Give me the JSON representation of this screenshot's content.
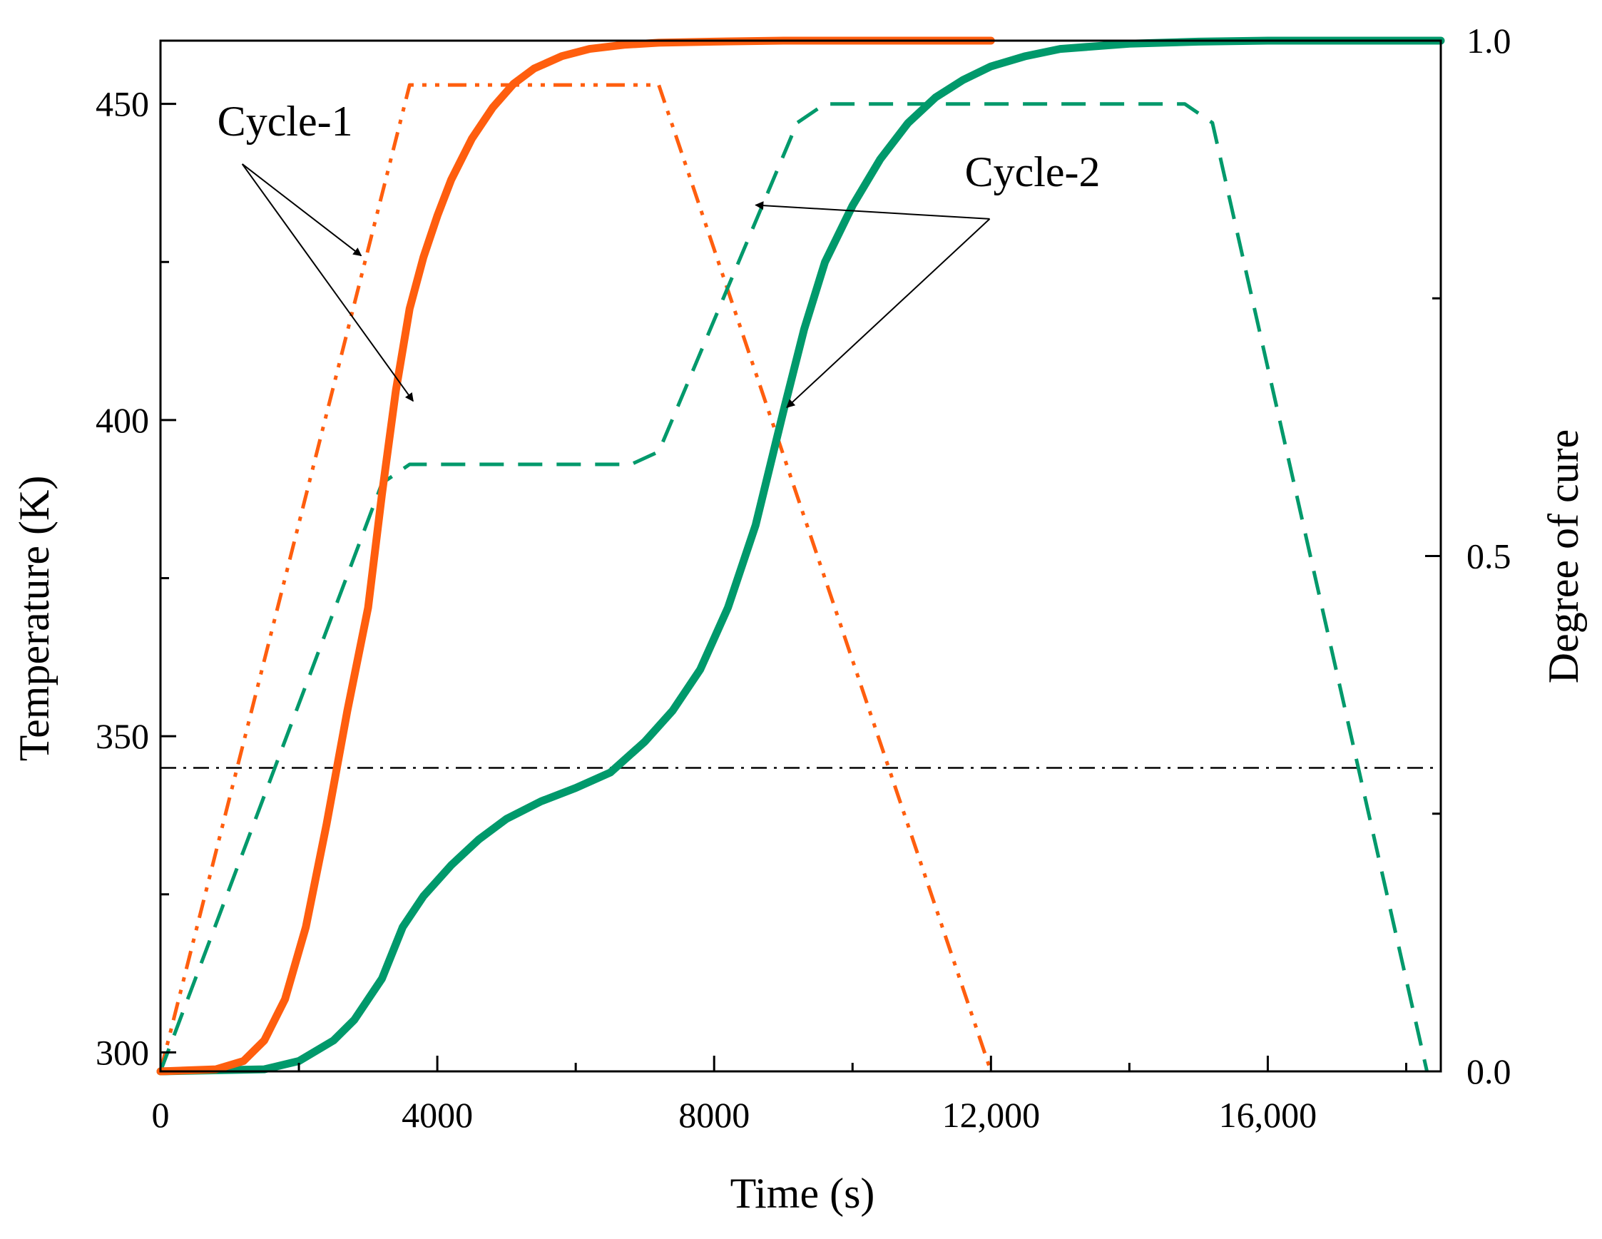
{
  "chart_data": {
    "type": "line",
    "xlabel": "Time (s)",
    "ylabel": "Temperature (K)",
    "y2label": "Degree of cure",
    "xlim": [
      0,
      18500
    ],
    "ylim": [
      297,
      460
    ],
    "y2lim": [
      0,
      1
    ],
    "x_ticks": [
      0,
      4000,
      8000,
      12000,
      16000
    ],
    "x_tick_labels": [
      "0",
      "4000",
      "8000",
      "12,000",
      "16,000"
    ],
    "x_minor_ticks": [
      2000,
      6000,
      10000,
      14000,
      18000
    ],
    "y_ticks": [
      300,
      350,
      400,
      450
    ],
    "y_tick_labels": [
      "300",
      "350",
      "400",
      "450"
    ],
    "y_minor_ticks": [
      325,
      375,
      425
    ],
    "y2_ticks": [
      0,
      0.5,
      1
    ],
    "y2_tick_labels": [
      "0.0",
      "0.5",
      "1.0"
    ],
    "y2_minor_ticks": [
      0.25,
      0.75
    ],
    "grid": false,
    "colors": {
      "cycle1": "#ff5e0e",
      "cycle2": "#00996b",
      "reference": "#000000"
    },
    "series": [
      {
        "axis": "left",
        "style": "dash-dot-dot",
        "color": "#ff5e0e",
        "x": [
          0,
          3600,
          7200,
          12000
        ],
        "y": [
          297,
          453,
          453,
          297
        ]
      },
      {
        "axis": "left",
        "style": "dashed",
        "color": "#00996b",
        "x": [
          0,
          3200,
          3600,
          6800,
          7200,
          9200,
          9600,
          14800,
          15200,
          18300
        ],
        "y": [
          297,
          390,
          393,
          393,
          395,
          447,
          450,
          450,
          447,
          297
        ]
      },
      {
        "axis": "left",
        "style": "dash-dot",
        "color": "#000000",
        "x": [
          0,
          18500
        ],
        "y": [
          345,
          345
        ]
      },
      {
        "axis": "right",
        "style": "solid",
        "color": "#ff5e0e",
        "x": [
          0,
          800,
          1200,
          1500,
          1800,
          2100,
          2400,
          2700,
          3000,
          3200,
          3400,
          3600,
          3800,
          4000,
          4200,
          4500,
          4800,
          5100,
          5400,
          5800,
          6200,
          6700,
          7200,
          8000,
          9000,
          10000,
          11000,
          12000
        ],
        "y": [
          0,
          0.002,
          0.01,
          0.03,
          0.07,
          0.14,
          0.24,
          0.35,
          0.45,
          0.56,
          0.66,
          0.74,
          0.79,
          0.83,
          0.865,
          0.905,
          0.935,
          0.958,
          0.973,
          0.985,
          0.992,
          0.996,
          0.998,
          0.999,
          1,
          1,
          1,
          1
        ]
      },
      {
        "axis": "right",
        "style": "solid",
        "color": "#00996b",
        "x": [
          0,
          1500,
          2000,
          2500,
          2800,
          3200,
          3500,
          3800,
          4200,
          4600,
          5000,
          5500,
          6000,
          6500,
          7000,
          7400,
          7800,
          8200,
          8600,
          9000,
          9300,
          9600,
          10000,
          10400,
          10800,
          11200,
          11600,
          12000,
          12500,
          13000,
          14000,
          15000,
          16000,
          18500
        ],
        "y": [
          0,
          0.002,
          0.01,
          0.03,
          0.05,
          0.09,
          0.14,
          0.17,
          0.2,
          0.225,
          0.245,
          0.262,
          0.275,
          0.29,
          0.32,
          0.35,
          0.39,
          0.45,
          0.53,
          0.64,
          0.72,
          0.785,
          0.84,
          0.885,
          0.92,
          0.945,
          0.962,
          0.975,
          0.985,
          0.992,
          0.997,
          0.999,
          1,
          1
        ]
      }
    ],
    "annotations": [
      {
        "text": "Cycle-1",
        "x": 1800,
        "y": 445,
        "arrows_to": [
          [
            2900,
            426
          ],
          [
            3650,
            403
          ]
        ]
      },
      {
        "text": "Cycle-2",
        "x": 12600,
        "y": 437,
        "arrows_to": [
          [
            8600,
            434
          ],
          [
            9050,
            402
          ]
        ]
      }
    ]
  }
}
